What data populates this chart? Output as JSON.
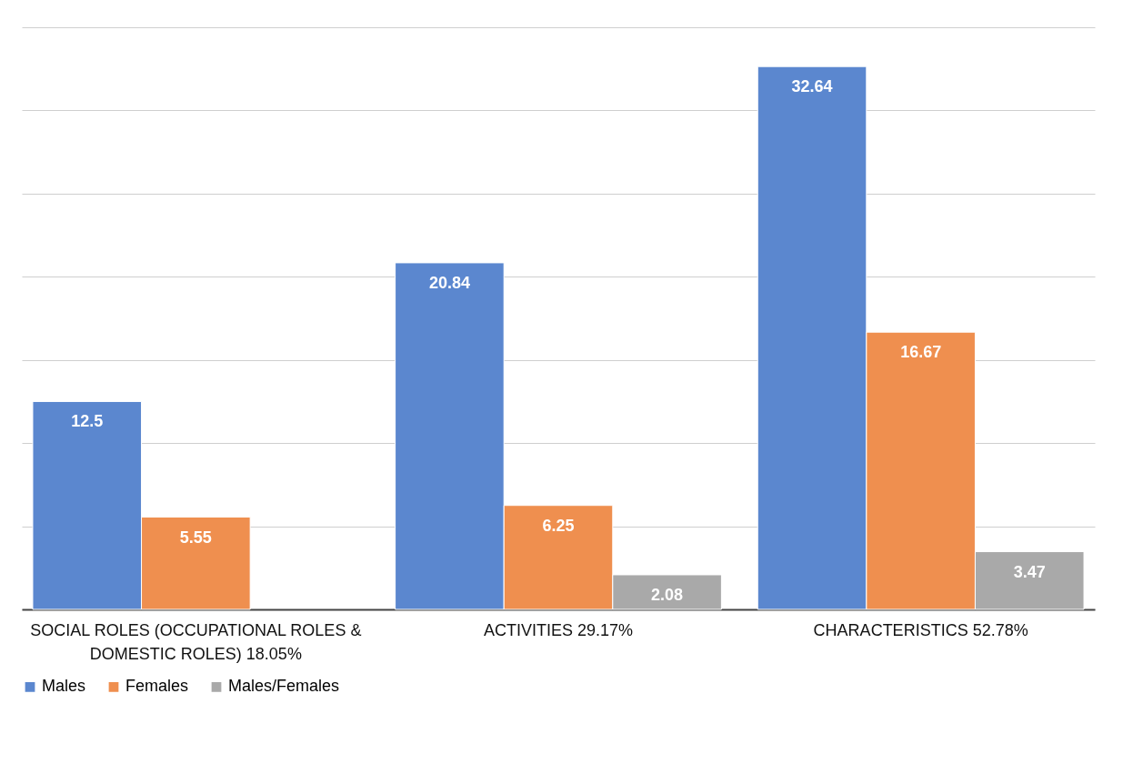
{
  "chart_data": {
    "type": "bar",
    "categories": [
      "SOCIAL ROLES (OCCUPATIONAL ROLES & DOMESTIC ROLES) 18.05%",
      "ACTIVITIES 29.17%",
      "CHARACTERISTICS 52.78%"
    ],
    "series": [
      {
        "name": "Males",
        "color": "#5b87cf",
        "values": [
          12.5,
          20.84,
          32.64
        ]
      },
      {
        "name": "Females",
        "color": "#ef8f4f",
        "values": [
          5.55,
          6.25,
          16.67
        ]
      },
      {
        "name": "Males/Females",
        "color": "#a9a9a9",
        "values": [
          null,
          2.08,
          3.47
        ]
      }
    ],
    "ylim": [
      0,
      35
    ],
    "yticks": [
      {
        "value": 0,
        "label": null
      },
      {
        "value": 5,
        "label": null
      },
      {
        "value": 10,
        "label": null
      },
      {
        "value": 15,
        "label": null
      },
      {
        "value": 20,
        "label": null
      },
      {
        "value": 25,
        "label": null
      },
      {
        "value": 30,
        "label": null
      },
      {
        "value": 35,
        "label": null
      }
    ],
    "tick_labels": "x",
    "grid": "y",
    "legend": "bottom",
    "data_labels": true
  }
}
